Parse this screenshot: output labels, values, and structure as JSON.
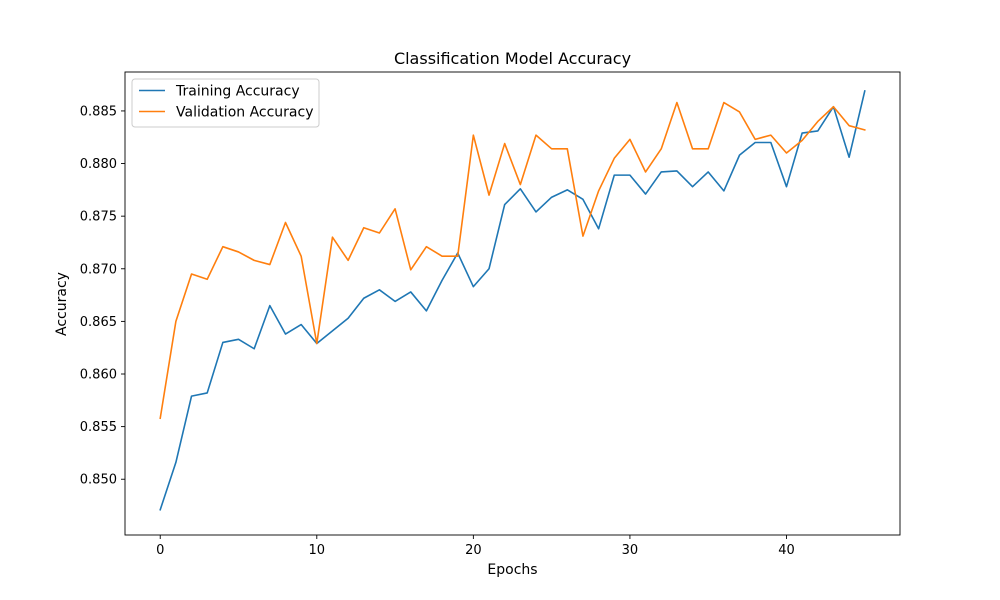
{
  "chart_data": {
    "type": "line",
    "title": "Classification Model Accuracy",
    "xlabel": "Epochs",
    "ylabel": "Accuracy",
    "xlim": [
      -2.25,
      47.25
    ],
    "ylim": [
      0.8447,
      0.8887
    ],
    "xticks": [
      0,
      10,
      20,
      30,
      40
    ],
    "yticks": [
      0.85,
      0.855,
      0.86,
      0.865,
      0.87,
      0.875,
      0.88,
      0.885
    ],
    "ytick_labels": [
      "0.850",
      "0.855",
      "0.860",
      "0.865",
      "0.870",
      "0.875",
      "0.880",
      "0.885"
    ],
    "legend_position": "upper-left",
    "x": [
      0,
      1,
      2,
      3,
      4,
      5,
      6,
      7,
      8,
      9,
      10,
      11,
      12,
      13,
      14,
      15,
      16,
      17,
      18,
      19,
      20,
      21,
      22,
      23,
      24,
      25,
      26,
      27,
      28,
      29,
      30,
      31,
      32,
      33,
      34,
      35,
      36,
      37,
      38,
      39,
      40,
      41,
      42,
      43,
      44,
      45
    ],
    "series": [
      {
        "name": "Training Accuracy",
        "color": "#1f77b4",
        "values": [
          0.8471,
          0.8516,
          0.8579,
          0.8582,
          0.863,
          0.8633,
          0.8624,
          0.8665,
          0.8638,
          0.8647,
          0.8629,
          0.8641,
          0.8653,
          0.8672,
          0.868,
          0.8669,
          0.8678,
          0.866,
          0.8689,
          0.8715,
          0.8683,
          0.87,
          0.8761,
          0.8776,
          0.8754,
          0.8768,
          0.8775,
          0.8766,
          0.8738,
          0.8789,
          0.8789,
          0.8771,
          0.8792,
          0.8793,
          0.8778,
          0.8792,
          0.8774,
          0.8808,
          0.882,
          0.882,
          0.8778,
          0.8829,
          0.8831,
          0.8854,
          0.8806,
          0.8869
        ]
      },
      {
        "name": "Validation Accuracy",
        "color": "#ff7f0e",
        "values": [
          0.8558,
          0.865,
          0.8695,
          0.869,
          0.8721,
          0.8716,
          0.8708,
          0.8704,
          0.8744,
          0.8712,
          0.8629,
          0.873,
          0.8708,
          0.8739,
          0.8734,
          0.8757,
          0.8699,
          0.8721,
          0.8712,
          0.8712,
          0.8827,
          0.877,
          0.8819,
          0.878,
          0.8827,
          0.8814,
          0.8814,
          0.8731,
          0.8774,
          0.8805,
          0.8823,
          0.8792,
          0.8814,
          0.8858,
          0.8814,
          0.8814,
          0.8858,
          0.8849,
          0.8823,
          0.8827,
          0.881,
          0.8822,
          0.884,
          0.8854,
          0.8836,
          0.8832
        ]
      }
    ]
  }
}
